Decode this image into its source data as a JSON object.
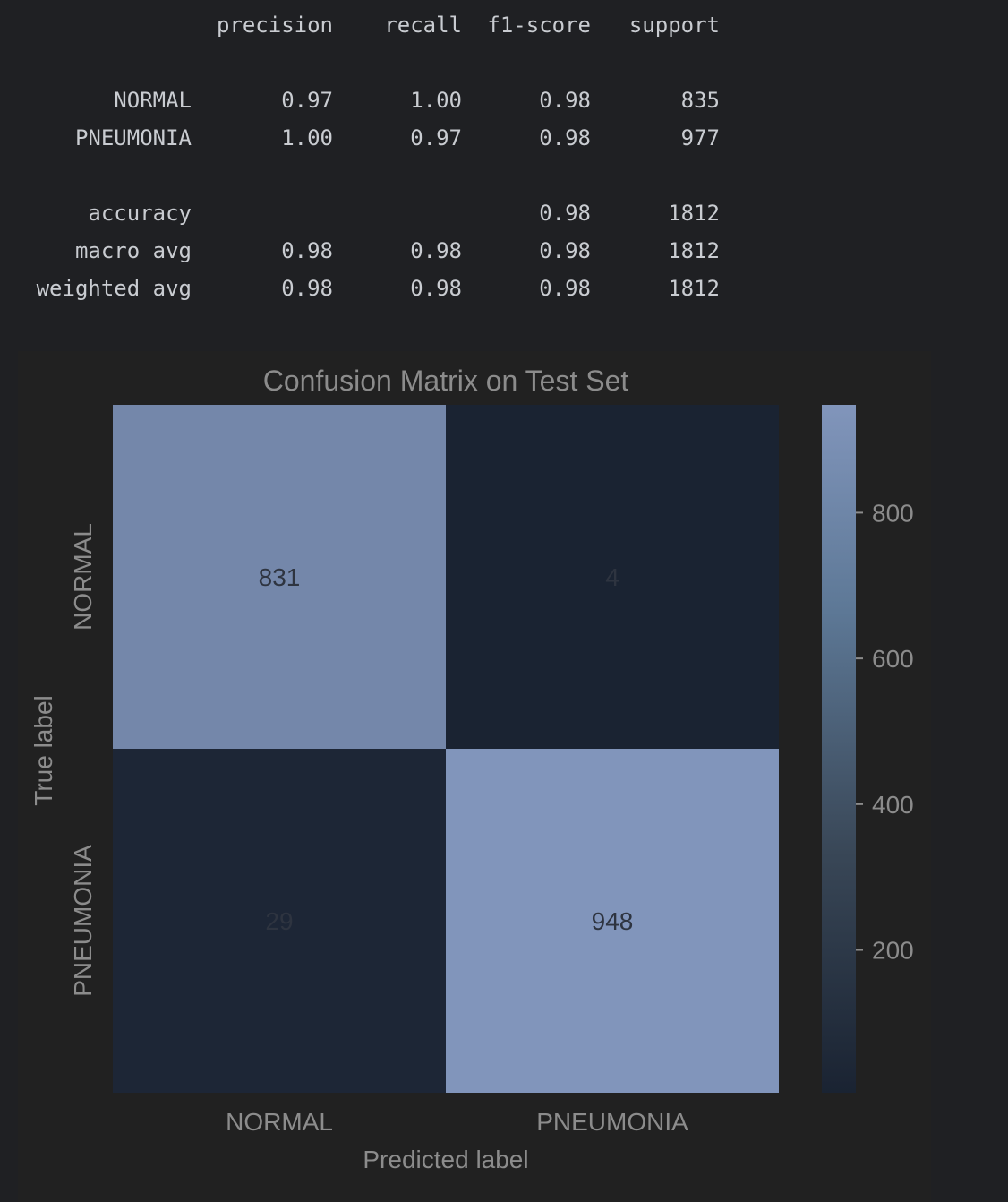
{
  "report": {
    "headers": [
      "precision",
      "recall",
      "f1-score",
      "support"
    ],
    "rows": [
      {
        "label": "NORMAL",
        "precision": "0.97",
        "recall": "1.00",
        "f1": "0.98",
        "support": "835"
      },
      {
        "label": "PNEUMONIA",
        "precision": "1.00",
        "recall": "0.97",
        "f1": "0.98",
        "support": "977"
      },
      {
        "label": "accuracy",
        "precision": "",
        "recall": "",
        "f1": "0.98",
        "support": "1812"
      },
      {
        "label": "macro avg",
        "precision": "0.98",
        "recall": "0.98",
        "f1": "0.98",
        "support": "1812"
      },
      {
        "label": "weighted avg",
        "precision": "0.98",
        "recall": "0.98",
        "f1": "0.98",
        "support": "1812"
      }
    ]
  },
  "chart_data": {
    "type": "heatmap",
    "title": "Confusion Matrix on Test Set",
    "xlabel": "Predicted label",
    "ylabel": "True label",
    "x_categories": [
      "NORMAL",
      "PNEUMONIA"
    ],
    "y_categories": [
      "NORMAL",
      "PNEUMONIA"
    ],
    "values": [
      [
        831,
        4
      ],
      [
        29,
        948
      ]
    ],
    "colorbar": {
      "min": 4,
      "max": 948,
      "ticks": [
        200,
        400,
        600,
        800
      ],
      "low_color": "#1a2332",
      "high_color": "#8195bb"
    }
  }
}
